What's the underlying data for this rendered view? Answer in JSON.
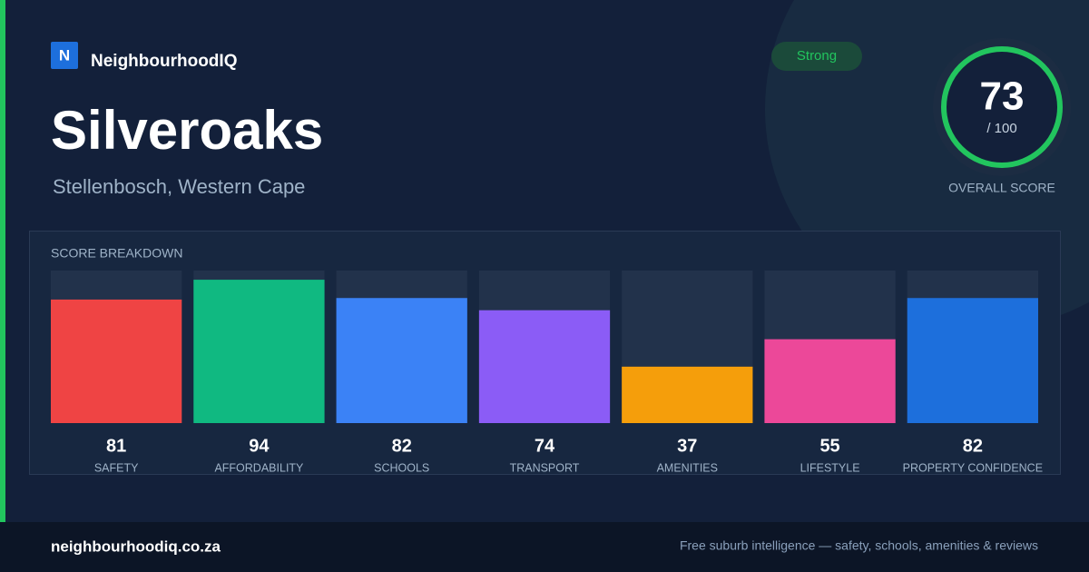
{
  "brand": {
    "logo": "N",
    "name": "NeighbourhoodIQ"
  },
  "header": {
    "title": "Silveroaks",
    "subtitle": "Stellenbosch, Western Cape",
    "badge": "Strong"
  },
  "score": {
    "value": 73,
    "max_label": "/ 100",
    "label": "OVERALL SCORE"
  },
  "chart_data": {
    "type": "bar",
    "title": "SCORE BREAKDOWN",
    "categories": [
      "SAFETY",
      "AFFORDABILITY",
      "SCHOOLS",
      "TRANSPORT",
      "AMENITIES",
      "LIFESTYLE",
      "PROPERTY CONFIDENCE"
    ],
    "values": [
      81,
      94,
      82,
      74,
      37,
      55,
      82
    ],
    "colors": [
      "#ef4444",
      "#10b981",
      "#3b82f6",
      "#8b5cf6",
      "#f59e0b",
      "#ec4899",
      "#1d6fdc"
    ],
    "ylim": [
      0,
      100
    ]
  },
  "footer": {
    "domain": "neighbourhoodiq.co.za",
    "tagline": "Free suburb intelligence — safety, schools, amenities & reviews"
  }
}
